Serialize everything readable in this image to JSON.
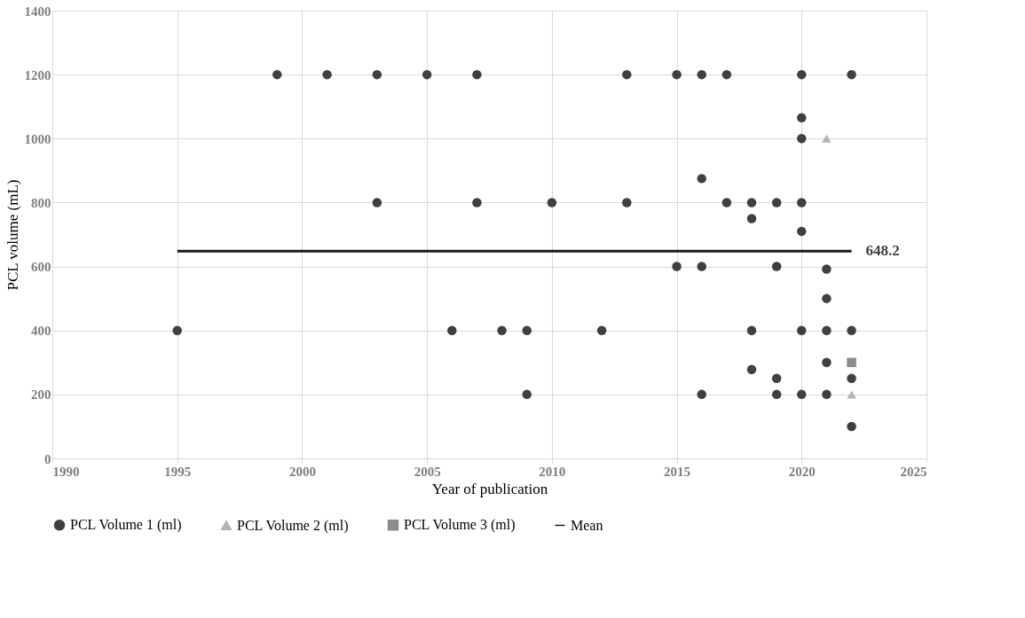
{
  "chart_data": {
    "type": "scatter",
    "xlabel": "Year of publication",
    "ylabel": "PCL volume (mL)",
    "xlim": [
      1990,
      2025
    ],
    "xticks": [
      1990,
      1995,
      2000,
      2005,
      2010,
      2015,
      2020,
      2025
    ],
    "ylim": [
      0,
      1400
    ],
    "yticks": [
      0,
      200,
      400,
      600,
      800,
      1000,
      1200,
      1400
    ],
    "grid": true,
    "legend": "bottom",
    "annotations": [
      {
        "text": "648.2",
        "x": 2022,
        "y": 648.2
      }
    ],
    "series": [
      {
        "name": "PCL Volume 1 (ml)",
        "color": "#404040",
        "marker": "circle",
        "x": [
          1995,
          1999,
          2001,
          2003,
          2003,
          2005,
          2006,
          2007,
          2007,
          2008,
          2009,
          2009,
          2010,
          2012,
          2013,
          2013,
          2015,
          2015,
          2016,
          2016,
          2016,
          2016,
          2017,
          2017,
          2018,
          2018,
          2018,
          2018,
          2019,
          2019,
          2019,
          2019,
          2020,
          2020,
          2020,
          2020,
          2020,
          2020,
          2020,
          2021,
          2021,
          2021,
          2021,
          2021,
          2022,
          2022,
          2022,
          2022
        ],
        "values": [
          400,
          1200,
          1200,
          1200,
          800,
          1200,
          400,
          1200,
          800,
          400,
          400,
          200,
          800,
          400,
          1200,
          800,
          1200,
          600,
          1200,
          875,
          600,
          200,
          1200,
          800,
          800,
          750,
          400,
          278,
          800,
          600,
          250,
          200,
          1200,
          1065,
          1000,
          800,
          710,
          400,
          200,
          592,
          500,
          400,
          300,
          200,
          1200,
          400,
          250,
          100
        ]
      },
      {
        "name": "PCL Volume 2 (ml)",
        "color": "#b4b4b4",
        "marker": "triangle",
        "x": [
          2021,
          2022
        ],
        "values": [
          1000,
          200
        ]
      },
      {
        "name": "PCL Volume 3 (ml)",
        "color": "#8c8c8c",
        "marker": "square",
        "x": [
          2022
        ],
        "values": [
          300
        ]
      },
      {
        "name": "Mean",
        "type": "line",
        "color": "#1a1a1a",
        "marker": "none",
        "line_style": "solid",
        "x": [
          1995,
          2022
        ],
        "values": [
          648.2,
          648.2
        ]
      }
    ]
  }
}
